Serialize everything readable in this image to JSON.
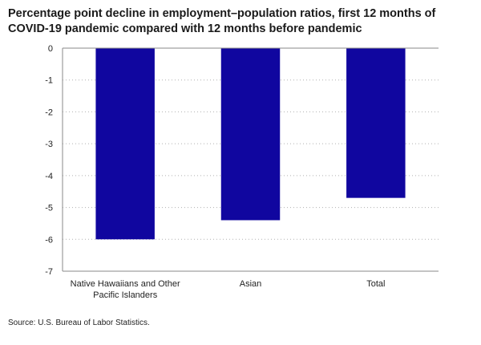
{
  "title_lines": [
    "Percentage point decline in employment–population ratios, first 12 months of",
    "COVID-19 pandemic compared with 12 months before pandemic"
  ],
  "source": "Source: U.S. Bureau of Labor Statistics.",
  "colors": {
    "bar": "#10069f",
    "grid": "#b0b0b0",
    "axis": "#888888"
  },
  "chart_data": {
    "type": "bar",
    "categories": [
      "Native Hawaiians and Other Pacific Islanders",
      "Asian",
      "Total"
    ],
    "category_label_lines": [
      [
        "Native Hawaiians and Other",
        "Pacific Islanders"
      ],
      [
        "Asian"
      ],
      [
        "Total"
      ]
    ],
    "values": [
      -6.0,
      -5.4,
      -4.7
    ],
    "ylim": [
      -7,
      0
    ],
    "yticks": [
      0,
      -1,
      -2,
      -3,
      -4,
      -5,
      -6,
      -7
    ],
    "title": "Percentage point decline in employment–population ratios, first 12 months of COVID-19 pandemic compared with 12 months before pandemic",
    "xlabel": "",
    "ylabel": "",
    "grid": true,
    "legend": false
  }
}
